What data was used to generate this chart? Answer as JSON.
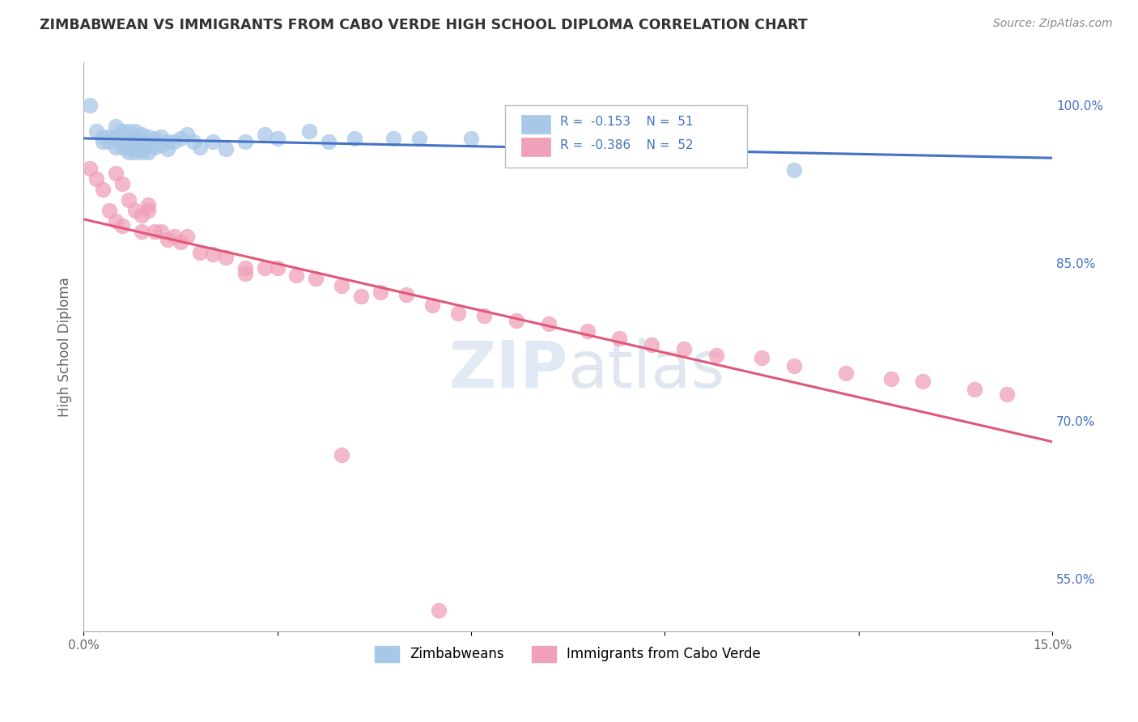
{
  "title": "ZIMBABWEAN VS IMMIGRANTS FROM CABO VERDE HIGH SCHOOL DIPLOMA CORRELATION CHART",
  "source": "Source: ZipAtlas.com",
  "ylabel": "High School Diploma",
  "xlim": [
    0.0,
    0.15
  ],
  "ylim": [
    0.5,
    1.04
  ],
  "yticks_right": [
    0.55,
    0.7,
    0.85,
    1.0
  ],
  "ytick_labels_right": [
    "55.0%",
    "70.0%",
    "85.0%",
    "100.0%"
  ],
  "blue_color": "#A8C8E8",
  "pink_color": "#F0A0B8",
  "blue_line_color": "#4472C4",
  "pink_line_color": "#E05878",
  "legend_R_blue": "R = -0.153",
  "legend_N_blue": "N = 51",
  "legend_R_pink": "R = -0.386",
  "legend_N_pink": "N = 52",
  "legend_label_blue": "Zimbabweans",
  "legend_label_pink": "Immigrants from Cabo Verde",
  "blue_x": [
    0.001,
    0.002,
    0.003,
    0.004,
    0.004,
    0.005,
    0.005,
    0.005,
    0.006,
    0.006,
    0.006,
    0.007,
    0.007,
    0.007,
    0.007,
    0.008,
    0.008,
    0.008,
    0.008,
    0.009,
    0.009,
    0.009,
    0.01,
    0.01,
    0.01,
    0.011,
    0.011,
    0.012,
    0.012,
    0.013,
    0.013,
    0.014,
    0.015,
    0.016,
    0.017,
    0.018,
    0.02,
    0.022,
    0.025,
    0.028,
    0.03,
    0.035,
    0.038,
    0.042,
    0.048,
    0.052,
    0.06,
    0.072,
    0.11,
    0.003,
    0.009
  ],
  "blue_y": [
    1.0,
    0.975,
    0.97,
    0.97,
    0.965,
    0.98,
    0.97,
    0.96,
    0.975,
    0.965,
    0.96,
    0.975,
    0.965,
    0.958,
    0.955,
    0.975,
    0.968,
    0.96,
    0.955,
    0.972,
    0.965,
    0.958,
    0.97,
    0.963,
    0.955,
    0.968,
    0.96,
    0.97,
    0.962,
    0.965,
    0.958,
    0.965,
    0.968,
    0.972,
    0.965,
    0.96,
    0.965,
    0.958,
    0.965,
    0.972,
    0.968,
    0.975,
    0.965,
    0.968,
    0.968,
    0.968,
    0.968,
    0.968,
    0.938,
    0.965,
    0.955
  ],
  "pink_x": [
    0.001,
    0.002,
    0.003,
    0.004,
    0.005,
    0.005,
    0.006,
    0.006,
    0.007,
    0.008,
    0.009,
    0.009,
    0.01,
    0.011,
    0.012,
    0.013,
    0.014,
    0.015,
    0.016,
    0.018,
    0.02,
    0.022,
    0.025,
    0.028,
    0.03,
    0.033,
    0.036,
    0.04,
    0.043,
    0.046,
    0.05,
    0.054,
    0.058,
    0.062,
    0.067,
    0.072,
    0.078,
    0.083,
    0.088,
    0.093,
    0.098,
    0.105,
    0.11,
    0.118,
    0.125,
    0.13,
    0.138,
    0.143,
    0.055,
    0.025,
    0.01,
    0.04
  ],
  "pink_y": [
    0.94,
    0.93,
    0.92,
    0.9,
    0.935,
    0.89,
    0.925,
    0.885,
    0.91,
    0.9,
    0.895,
    0.88,
    0.905,
    0.88,
    0.88,
    0.872,
    0.875,
    0.87,
    0.875,
    0.86,
    0.858,
    0.855,
    0.84,
    0.845,
    0.845,
    0.838,
    0.835,
    0.828,
    0.818,
    0.822,
    0.82,
    0.81,
    0.802,
    0.8,
    0.795,
    0.792,
    0.785,
    0.778,
    0.772,
    0.768,
    0.762,
    0.76,
    0.752,
    0.745,
    0.74,
    0.738,
    0.73,
    0.725,
    0.52,
    0.845,
    0.9,
    0.668
  ],
  "background_color": "#FFFFFF",
  "grid_color": "#CCCCCC",
  "title_color": "#333333",
  "source_color": "#888888"
}
